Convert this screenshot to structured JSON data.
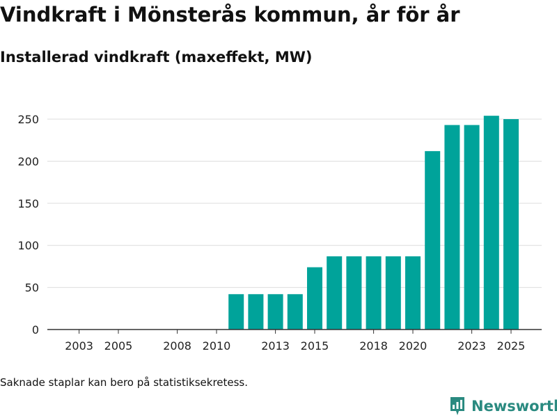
{
  "header": {
    "title": "Vindkraft i Mönsterås kommun, år för år",
    "subtitle": "Installerad vindkraft (maxeffekt, MW)"
  },
  "footer": {
    "note": "Saknade staplar kan bero på statistiksekretess.",
    "brand": "Newsworthy"
  },
  "colors": {
    "bar": "#00a39a",
    "grid": "#dddddd",
    "axis": "#333333",
    "brand": "#2a8a80"
  },
  "icons": {
    "brand_logo": "newsworthy-logo-icon"
  },
  "chart_data": {
    "type": "bar",
    "title": "Vindkraft i Mönsterås kommun, år för år",
    "ylabel": "Installerad vindkraft (maxeffekt, MW)",
    "xlabel": "",
    "xlim": [
      2001,
      2026
    ],
    "ylim": [
      0,
      265
    ],
    "yticks": [
      0,
      50,
      100,
      150,
      200,
      250
    ],
    "xticks": [
      2003,
      2005,
      2008,
      2010,
      2013,
      2015,
      2018,
      2020,
      2023,
      2025
    ],
    "grid": true,
    "categories": [
      2011,
      2012,
      2013,
      2014,
      2015,
      2016,
      2017,
      2018,
      2019,
      2020,
      2021,
      2022,
      2023,
      2024,
      2025
    ],
    "values": [
      42,
      42,
      42,
      42,
      74,
      87,
      87,
      87,
      87,
      87,
      212,
      243,
      243,
      254,
      250
    ]
  }
}
